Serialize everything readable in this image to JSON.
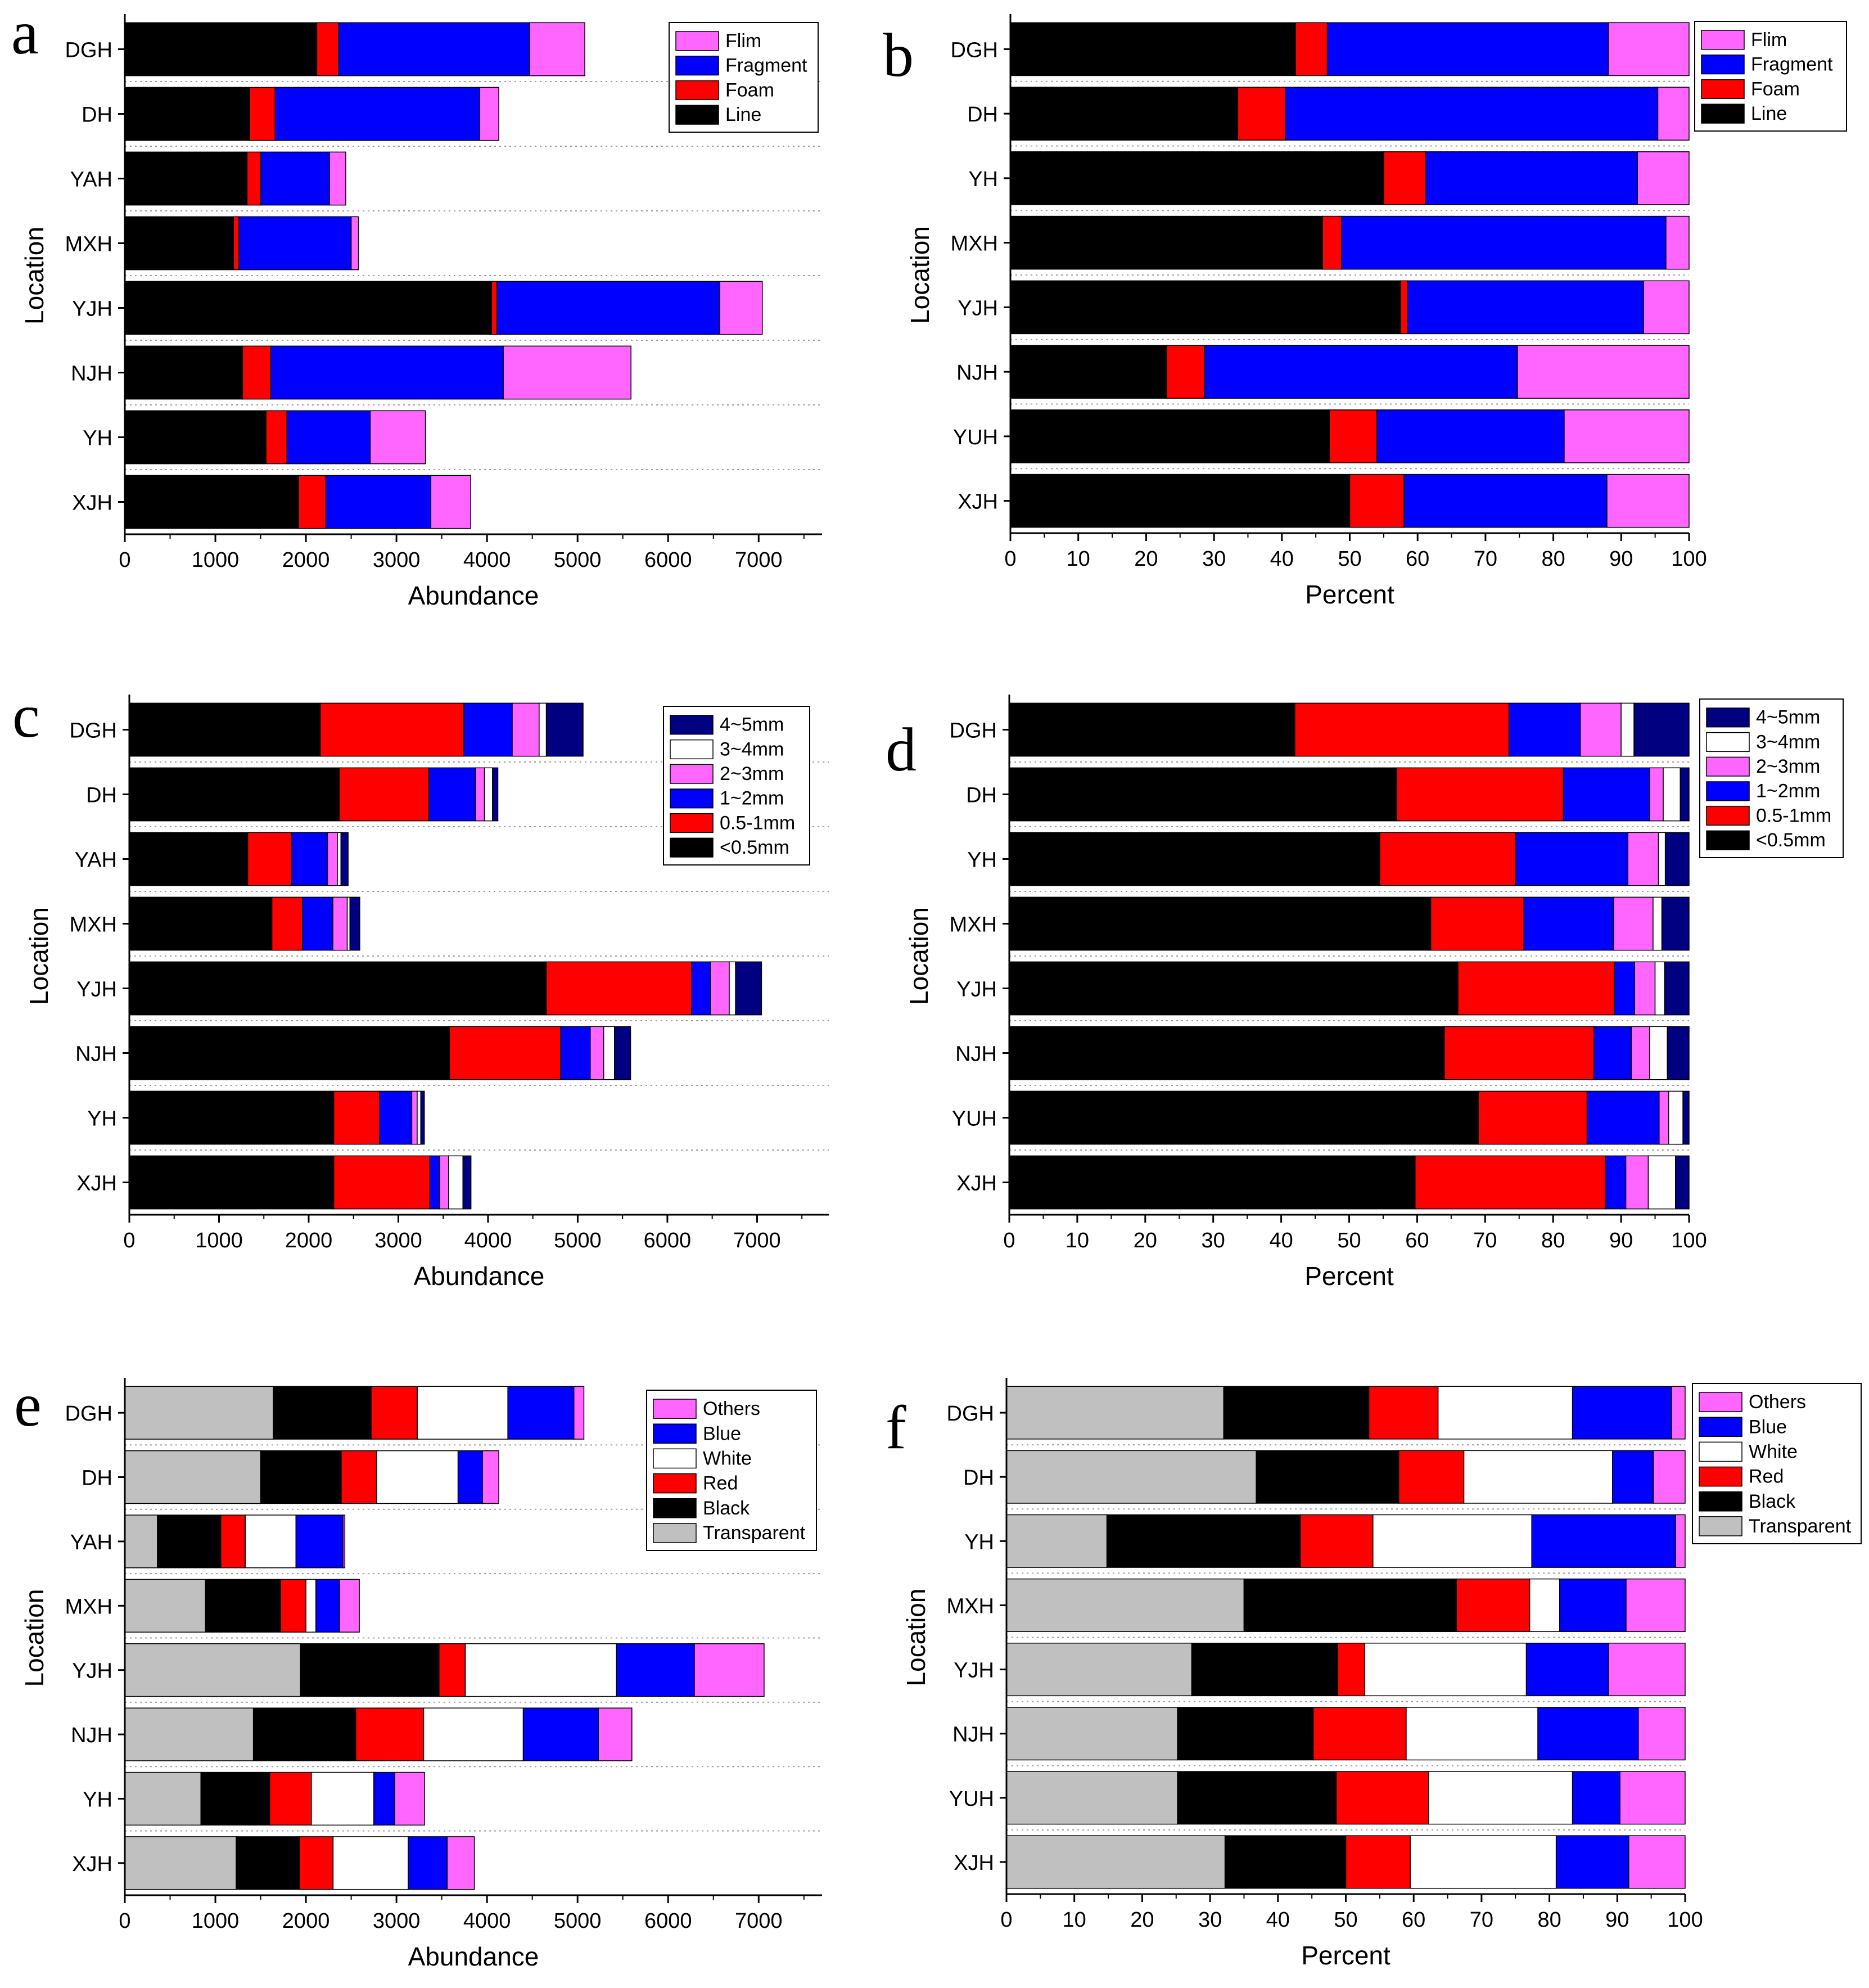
{
  "chart_data": [
    {
      "id": "a",
      "panel_label": "a",
      "type": "bar",
      "stacked": true,
      "orientation": "horizontal",
      "mode": "abundance",
      "xlabel": "Abundance",
      "ylabel": "Location",
      "xlim": [
        0,
        7700
      ],
      "xticks": [
        0,
        1000,
        2000,
        3000,
        4000,
        5000,
        6000,
        7000
      ],
      "grid": "dotted horizontal separators",
      "legend_position": "top-right",
      "categories": [
        "DGH",
        "DH",
        "YAH",
        "MXH",
        "YJH",
        "NJH",
        "YH",
        "XJH"
      ],
      "series": [
        {
          "name": "Line",
          "color": "#000000",
          "values": [
            2120,
            1380,
            1350,
            1200,
            4050,
            1300,
            1560,
            1920
          ]
        },
        {
          "name": "Foam",
          "color": "#ff0000",
          "values": [
            240,
            280,
            150,
            60,
            60,
            310,
            230,
            300
          ]
        },
        {
          "name": "Fragment",
          "color": "#0000ff",
          "values": [
            2110,
            2260,
            760,
            1240,
            2460,
            2570,
            920,
            1160
          ]
        },
        {
          "name": "Flim",
          "color": "#ff66ff",
          "values": [
            610,
            210,
            180,
            80,
            470,
            1410,
            610,
            440
          ]
        }
      ],
      "legend_order": [
        "Flim",
        "Fragment",
        "Foam",
        "Line"
      ]
    },
    {
      "id": "b",
      "panel_label": "b",
      "type": "bar",
      "stacked": true,
      "orientation": "horizontal",
      "mode": "percent",
      "xlabel": "Percent",
      "ylabel": "Location",
      "xlim": [
        0,
        100
      ],
      "xticks": [
        0,
        10,
        20,
        30,
        40,
        50,
        60,
        70,
        80,
        90,
        100
      ],
      "grid": "dotted horizontal separators",
      "legend_position": "top-right",
      "categories": [
        "DGH",
        "DH",
        "YH",
        "MXH",
        "YJH",
        "NJH",
        "YUH",
        "XJH"
      ],
      "series": [
        {
          "name": "Line",
          "color": "#000000",
          "values": [
            42,
            33.5,
            55,
            46,
            57.5,
            23,
            47,
            50
          ]
        },
        {
          "name": "Foam",
          "color": "#ff0000",
          "values": [
            4.7,
            7,
            6.2,
            2.8,
            1,
            5.6,
            7,
            8
          ]
        },
        {
          "name": "Fragment",
          "color": "#0000ff",
          "values": [
            41.4,
            54.9,
            31.2,
            47.8,
            34.8,
            46.1,
            27.6,
            29.9
          ]
        },
        {
          "name": "Flim",
          "color": "#ff66ff",
          "values": [
            11.9,
            4.6,
            7.6,
            3.4,
            6.7,
            25.3,
            18.4,
            12.1
          ]
        }
      ],
      "legend_order": [
        "Flim",
        "Fragment",
        "Foam",
        "Line"
      ]
    },
    {
      "id": "c",
      "panel_label": "c",
      "type": "bar",
      "stacked": true,
      "orientation": "horizontal",
      "mode": "abundance",
      "xlabel": "Abundance",
      "ylabel": "Location",
      "xlim": [
        0,
        7800
      ],
      "xticks": [
        0,
        1000,
        2000,
        3000,
        4000,
        5000,
        6000,
        7000
      ],
      "grid": "dotted horizontal separators",
      "legend_position": "top-right",
      "categories": [
        "DGH",
        "DH",
        "YAH",
        "MXH",
        "YJH",
        "NJH",
        "YH",
        "XJH"
      ],
      "series": [
        {
          "name": "<0.5mm",
          "color": "#000000",
          "values": [
            2130,
            2340,
            1320,
            1590,
            4650,
            3570,
            2280,
            2280
          ]
        },
        {
          "name": "0.5-1mm",
          "color": "#ff0000",
          "values": [
            1600,
            1000,
            490,
            340,
            1620,
            1240,
            510,
            1070
          ]
        },
        {
          "name": "1~2mm",
          "color": "#0000ff",
          "values": [
            540,
            520,
            400,
            340,
            210,
            330,
            360,
            110
          ]
        },
        {
          "name": "2~3mm",
          "color": "#ff66ff",
          "values": [
            300,
            100,
            110,
            160,
            210,
            150,
            60,
            100
          ]
        },
        {
          "name": "3~4mm",
          "color": "#ffffff",
          "values": [
            80,
            90,
            40,
            30,
            70,
            120,
            40,
            160
          ]
        },
        {
          "name": "4~5mm",
          "color": "#000080",
          "values": [
            410,
            60,
            80,
            110,
            290,
            180,
            40,
            90
          ]
        }
      ],
      "legend_order": [
        "4~5mm",
        "3~4mm",
        "2~3mm",
        "1~2mm",
        "0.5-1mm",
        "<0.5mm"
      ]
    },
    {
      "id": "d",
      "panel_label": "d",
      "type": "bar",
      "stacked": true,
      "orientation": "horizontal",
      "mode": "percent",
      "xlabel": "Percent",
      "ylabel": "Location",
      "xlim": [
        0,
        100
      ],
      "xticks": [
        0,
        10,
        20,
        30,
        40,
        50,
        60,
        70,
        80,
        90,
        100
      ],
      "grid": "dotted horizontal separators",
      "legend_position": "top-right",
      "categories": [
        "DGH",
        "DH",
        "YH",
        "MXH",
        "YJH",
        "NJH",
        "YUH",
        "XJH"
      ],
      "series": [
        {
          "name": "<0.5mm",
          "color": "#000000",
          "values": [
            42,
            57,
            54.5,
            62,
            66,
            64,
            69,
            59.7
          ]
        },
        {
          "name": "0.5-1mm",
          "color": "#ff0000",
          "values": [
            31.5,
            24.5,
            20,
            13.7,
            23,
            22,
            16,
            28
          ]
        },
        {
          "name": "1~2mm",
          "color": "#0000ff",
          "values": [
            10.5,
            12.7,
            16.5,
            13.2,
            3,
            5.5,
            10.6,
            3
          ]
        },
        {
          "name": "2~3mm",
          "color": "#ff66ff",
          "values": [
            6,
            2,
            4.5,
            5.8,
            3,
            2.7,
            1.4,
            3.3
          ]
        },
        {
          "name": "3~4mm",
          "color": "#ffffff",
          "values": [
            1.9,
            2.5,
            1,
            1.3,
            1.4,
            2.6,
            2.1,
            4
          ]
        },
        {
          "name": "4~5mm",
          "color": "#000080",
          "values": [
            8.1,
            1.3,
            3.5,
            4,
            3.6,
            3.2,
            0.9,
            2
          ]
        }
      ],
      "legend_order": [
        "4~5mm",
        "3~4mm",
        "2~3mm",
        "1~2mm",
        "0.5-1mm",
        "<0.5mm"
      ]
    },
    {
      "id": "e",
      "panel_label": "e",
      "type": "bar",
      "stacked": true,
      "orientation": "horizontal",
      "mode": "abundance",
      "xlabel": "Abundance",
      "ylabel": "Location",
      "xlim": [
        0,
        7700
      ],
      "xticks": [
        0,
        1000,
        2000,
        3000,
        4000,
        5000,
        6000,
        7000
      ],
      "grid": "dotted horizontal separators",
      "legend_position": "top-right",
      "categories": [
        "DGH",
        "DH",
        "YAH",
        "MXH",
        "YJH",
        "NJH",
        "YH",
        "XJH"
      ],
      "series": [
        {
          "name": "Transparent",
          "color": "#c0c0c0",
          "values": [
            1640,
            1500,
            360,
            890,
            1940,
            1420,
            840,
            1230
          ]
        },
        {
          "name": "Black",
          "color": "#000000",
          "values": [
            1080,
            890,
            700,
            830,
            1530,
            1130,
            760,
            700
          ]
        },
        {
          "name": "Red",
          "color": "#ff0000",
          "values": [
            510,
            390,
            270,
            280,
            290,
            750,
            460,
            370
          ]
        },
        {
          "name": "White",
          "color": "#ffffff",
          "values": [
            1000,
            900,
            560,
            110,
            1670,
            1100,
            690,
            830
          ]
        },
        {
          "name": "Blue",
          "color": "#0000ff",
          "values": [
            730,
            270,
            520,
            260,
            860,
            830,
            230,
            430
          ]
        },
        {
          "name": "Others",
          "color": "#ff66ff",
          "values": [
            110,
            180,
            20,
            220,
            770,
            370,
            330,
            300
          ]
        }
      ],
      "legend_order": [
        "Others",
        "Blue",
        "White",
        "Red",
        "Black",
        "Transparent"
      ]
    },
    {
      "id": "f",
      "panel_label": "f",
      "type": "bar",
      "stacked": true,
      "orientation": "horizontal",
      "mode": "percent",
      "xlabel": "Percent",
      "ylabel": "Location",
      "xlim": [
        0,
        100
      ],
      "xticks": [
        0,
        10,
        20,
        30,
        40,
        50,
        60,
        70,
        80,
        90,
        100
      ],
      "grid": "dotted horizontal separators",
      "legend_position": "top-right",
      "categories": [
        "DGH",
        "DH",
        "YH",
        "MXH",
        "YJH",
        "NJH",
        "YUH",
        "XJH"
      ],
      "series": [
        {
          "name": "Transparent",
          "color": "#c0c0c0",
          "values": [
            32,
            36.8,
            14.8,
            35,
            27.3,
            25.2,
            25.2,
            32.2
          ]
        },
        {
          "name": "Black",
          "color": "#000000",
          "values": [
            21.4,
            21,
            28.5,
            31.3,
            21.5,
            20,
            23.4,
            17.8
          ]
        },
        {
          "name": "Red",
          "color": "#ff0000",
          "values": [
            10.2,
            9.6,
            10.7,
            10.8,
            4,
            13.7,
            13.6,
            9.5
          ]
        },
        {
          "name": "White",
          "color": "#ffffff",
          "values": [
            19.8,
            21.9,
            23.4,
            4.4,
            23.8,
            19.4,
            21.2,
            21.5
          ]
        },
        {
          "name": "Blue",
          "color": "#0000ff",
          "values": [
            14.6,
            6,
            21.2,
            9.8,
            12.1,
            14.8,
            7,
            10.7
          ]
        },
        {
          "name": "Others",
          "color": "#ff66ff",
          "values": [
            2,
            4.7,
            1.4,
            8.7,
            11.3,
            6.9,
            9.6,
            8.3
          ]
        }
      ],
      "legend_order": [
        "Others",
        "Blue",
        "White",
        "Red",
        "Black",
        "Transparent"
      ]
    }
  ]
}
